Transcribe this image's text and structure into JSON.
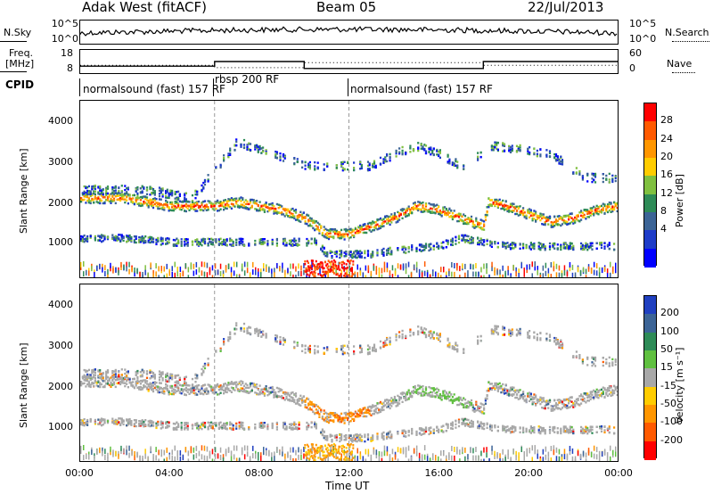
{
  "header": {
    "station": "Adak West (fitACF)",
    "beam": "Beam 05",
    "date": "22/Jul/2013"
  },
  "top_panel": {
    "left_label": "N.Sky",
    "right_label": "N.Search",
    "left_ticks": [
      "10^5",
      "10^0"
    ],
    "right_ticks": [
      "10^5",
      "10^0"
    ]
  },
  "freq_panel": {
    "left_label_1": "Freq.",
    "left_label_2": "[MHz]",
    "right_label": "Nave",
    "left_ticks": [
      "18",
      "8"
    ],
    "right_ticks": [
      "60",
      "0"
    ]
  },
  "cpid_panel": {
    "label": "CPID",
    "segments": [
      {
        "text": "normalsound (fast) 157 RF",
        "start_hour": 0
      },
      {
        "text": "rbsp 200 RF",
        "start_hour": 6
      },
      {
        "text": "normalsound (fast) 157 RF",
        "start_hour": 12
      }
    ]
  },
  "power_panel": {
    "ylabel": "Slant Range [km]",
    "yticks": [
      "4000",
      "3000",
      "2000",
      "1000"
    ],
    "cbar_label": "Power [dB]",
    "cbar_ticks": [
      "28",
      "24",
      "20",
      "16",
      "12",
      "8",
      "4"
    ],
    "cbar_colors": [
      "#ff0000",
      "#ff5a00",
      "#ff9600",
      "#ffcc00",
      "#80c040",
      "#2e8b57",
      "#3c6496",
      "#1e3cc8",
      "#0000ff"
    ]
  },
  "velocity_panel": {
    "ylabel": "Slant Range [km]",
    "yticks": [
      "4000",
      "3000",
      "2000",
      "1000"
    ],
    "cbar_label": "Velocity [m s⁻¹]",
    "cbar_ticks": [
      "200",
      "100",
      "50",
      "15",
      "-15",
      "-50",
      "-100",
      "-200"
    ],
    "cbar_colors": [
      "#2040c0",
      "#3c6496",
      "#2e8b57",
      "#60c040",
      "#a8a8a8",
      "#ffcc00",
      "#ff9600",
      "#ff5a00",
      "#ff0000"
    ]
  },
  "xaxis": {
    "label": "Time UT",
    "ticks": [
      "00:00",
      "04:00",
      "08:00",
      "12:00",
      "16:00",
      "20:00",
      "00:00"
    ]
  },
  "chart_data": {
    "type": "heatmap",
    "title": "Adak West (fitACF) Beam 05 22/Jul/2013",
    "xlabel": "Time UT",
    "ylabel": "Slant Range [km]",
    "xlim": [
      0,
      24
    ],
    "ylim": [
      200,
      4600
    ],
    "range_bands_km": [
      {
        "name": "main",
        "points": [
          [
            0,
            2200
          ],
          [
            2,
            2200
          ],
          [
            4,
            2000
          ],
          [
            6,
            2000
          ],
          [
            7,
            2100
          ],
          [
            9,
            1900
          ],
          [
            10,
            1700
          ],
          [
            11,
            1300
          ],
          [
            12,
            1300
          ],
          [
            14,
            1700
          ],
          [
            15,
            2000
          ],
          [
            16,
            1900
          ],
          [
            17,
            1700
          ],
          [
            18,
            1500
          ],
          [
            18.2,
            2100
          ],
          [
            19,
            2000
          ],
          [
            20,
            1800
          ],
          [
            21,
            1600
          ],
          [
            22,
            1700
          ],
          [
            23,
            1900
          ],
          [
            24,
            2000
          ]
        ]
      },
      {
        "name": "upper",
        "points": [
          [
            0,
            2400
          ],
          [
            3,
            2400
          ],
          [
            5,
            2200
          ],
          [
            7,
            3600
          ],
          [
            9,
            3200
          ],
          [
            10,
            3000
          ],
          [
            13,
            3000
          ],
          [
            14,
            3300
          ],
          [
            15,
            3500
          ],
          [
            16,
            3300
          ],
          [
            17,
            3000
          ],
          [
            18.5,
            3500
          ],
          [
            21,
            3300
          ],
          [
            22.5,
            2700
          ],
          [
            24,
            2700
          ]
        ]
      },
      {
        "name": "lower",
        "points": [
          [
            0,
            1200
          ],
          [
            2,
            1200
          ],
          [
            4,
            1100
          ],
          [
            10.5,
            1100
          ],
          [
            11,
            800
          ],
          [
            13,
            800
          ],
          [
            14,
            900
          ],
          [
            16,
            1000
          ],
          [
            17,
            1200
          ],
          [
            19,
            1000
          ],
          [
            21,
            1000
          ],
          [
            24,
            1000
          ]
        ]
      }
    ],
    "freq_mhz": [
      [
        0,
        11
      ],
      [
        6,
        11
      ],
      [
        6,
        13
      ],
      [
        10,
        13
      ],
      [
        10,
        10
      ],
      [
        18,
        10
      ],
      [
        18,
        13
      ],
      [
        24,
        13
      ]
    ],
    "nave": [
      [
        0,
        20
      ],
      [
        6,
        20
      ],
      [
        6,
        14
      ],
      [
        10,
        14
      ],
      [
        10,
        27
      ],
      [
        18,
        27
      ],
      [
        18,
        20
      ],
      [
        24,
        20
      ]
    ],
    "cpid_boundaries_hour": [
      6,
      12
    ]
  }
}
